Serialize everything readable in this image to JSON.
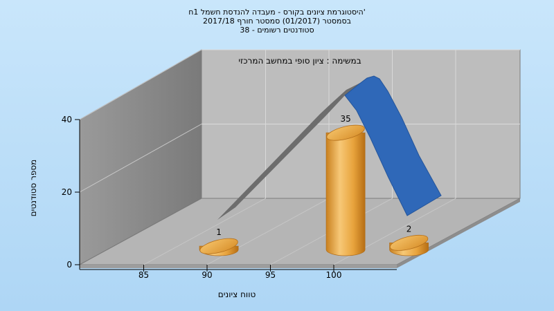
{
  "chart_data": {
    "type": "bar",
    "title_lines": [
      "היסטוגרמת ציונים בקורס - מעבדה להנדסת חשמל 1ח'",
      "בסמסטר  (01/2017)  סמסטר חורף 2017/18",
      "סטודנטים רשומים - 38"
    ],
    "subtitle": "במשימה : ציון סופי במחשב המרכזי",
    "xlabel": "טווח ציונים",
    "ylabel": "מספר סטודנטים",
    "x_ticks": [
      "85",
      "90",
      "95",
      "100"
    ],
    "y_ticks": [
      "0",
      "20",
      "40"
    ],
    "ylim": [
      0,
      40
    ],
    "bars": [
      {
        "x": 87,
        "value": 1,
        "label": "1"
      },
      {
        "x": 97,
        "value": 35,
        "label": "35"
      },
      {
        "x": 102,
        "value": 2,
        "label": "2"
      }
    ],
    "curve": {
      "type": "normal-distribution",
      "peak_x": 100
    },
    "colors": {
      "background": "#bde0f9",
      "bar": "#e8a33c",
      "curve": "#2f68b8",
      "curve_shadow": "#6e6e6e",
      "floor": "#b3b3b3",
      "back_wall": "#bdbdbd",
      "side_wall": "#8a8a8a"
    }
  }
}
